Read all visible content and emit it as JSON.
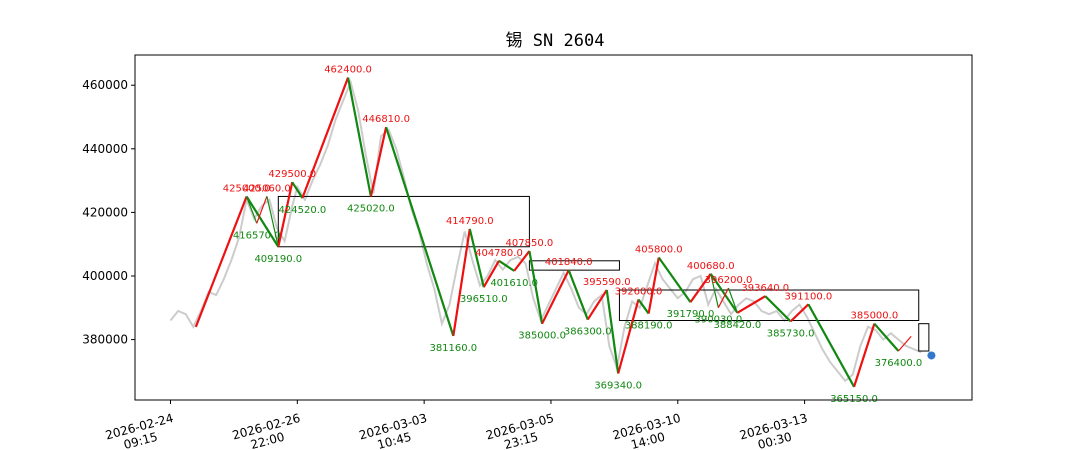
{
  "chart_data": {
    "type": "line",
    "title": "锡 SN 2604",
    "xlabel": "",
    "ylabel": "",
    "ylim": [
      361000,
      469500
    ],
    "y_ticks": [
      380000,
      400000,
      420000,
      440000,
      460000
    ],
    "x_tick_labels": [
      {
        "pos": 0,
        "date": "2026-02-24",
        "time": "09:15"
      },
      {
        "pos": 100,
        "date": "2026-02-26",
        "time": "22:00"
      },
      {
        "pos": 200,
        "date": "2026-03-03",
        "time": "10:45"
      },
      {
        "pos": 300,
        "date": "2026-03-05",
        "time": "23:15"
      },
      {
        "pos": 400,
        "date": "2026-03-10",
        "time": "14:00"
      },
      {
        "pos": 500,
        "date": "2026-03-13",
        "time": "00:30"
      }
    ],
    "xlim": [
      -28,
      632
    ],
    "grid": false,
    "legend": "none",
    "colors": {
      "price": "#cccccc",
      "up_stroke": "#ee1111",
      "down_stroke": "#118811",
      "high_label": "#ee1111",
      "low_label": "#118811",
      "box": "#000000",
      "last_point": "#3377cc"
    },
    "series": [
      {
        "kind": "price",
        "points": [
          [
            0,
            386000
          ],
          [
            6,
            389000
          ],
          [
            12,
            388000
          ],
          [
            18,
            384000
          ],
          [
            24,
            389000
          ],
          [
            30,
            395000
          ],
          [
            36,
            394000
          ],
          [
            42,
            399000
          ],
          [
            48,
            405000
          ],
          [
            54,
            412000
          ],
          [
            60,
            424000
          ],
          [
            66,
            418000
          ],
          [
            72,
            422000
          ],
          [
            78,
            424000
          ],
          [
            84,
            415000
          ],
          [
            90,
            411000
          ],
          [
            96,
            422000
          ],
          [
            100,
            428000
          ],
          [
            106,
            424000
          ],
          [
            112,
            430000
          ],
          [
            118,
            435000
          ],
          [
            124,
            441000
          ],
          [
            130,
            449000
          ],
          [
            136,
            455000
          ],
          [
            142,
            461000
          ],
          [
            148,
            452000
          ],
          [
            154,
            438000
          ],
          [
            160,
            426000
          ],
          [
            166,
            444000
          ],
          [
            172,
            446000
          ],
          [
            178,
            440000
          ],
          [
            184,
            431000
          ],
          [
            190,
            421000
          ],
          [
            196,
            414000
          ],
          [
            202,
            404000
          ],
          [
            208,
            396000
          ],
          [
            214,
            385000
          ],
          [
            220,
            391000
          ],
          [
            226,
            403000
          ],
          [
            232,
            414000
          ],
          [
            238,
            405000
          ],
          [
            244,
            397000
          ],
          [
            250,
            400000
          ],
          [
            256,
            405000
          ],
          [
            262,
            402000
          ],
          [
            268,
            405000
          ],
          [
            274,
            406000
          ],
          [
            280,
            404000
          ],
          [
            286,
            393000
          ],
          [
            292,
            386000
          ],
          [
            298,
            391000
          ],
          [
            304,
            396000
          ],
          [
            310,
            401000
          ],
          [
            316,
            396000
          ],
          [
            322,
            390000
          ],
          [
            328,
            388000
          ],
          [
            334,
            392000
          ],
          [
            340,
            394000
          ],
          [
            346,
            378000
          ],
          [
            352,
            371000
          ],
          [
            358,
            384000
          ],
          [
            364,
            392000
          ],
          [
            370,
            390000
          ],
          [
            376,
            397000
          ],
          [
            382,
            404000
          ],
          [
            388,
            399000
          ],
          [
            394,
            396000
          ],
          [
            400,
            393000
          ],
          [
            406,
            395000
          ],
          [
            412,
            399000
          ],
          [
            418,
            400000
          ],
          [
            424,
            391000
          ],
          [
            430,
            396000
          ],
          [
            436,
            392000
          ],
          [
            442,
            388000
          ],
          [
            448,
            391000
          ],
          [
            454,
            393000
          ],
          [
            460,
            392000
          ],
          [
            466,
            389000
          ],
          [
            472,
            388000
          ],
          [
            478,
            389000
          ],
          [
            484,
            386000
          ],
          [
            490,
            389000
          ],
          [
            496,
            391000
          ],
          [
            502,
            387000
          ],
          [
            508,
            382000
          ],
          [
            514,
            377000
          ],
          [
            520,
            373000
          ],
          [
            526,
            370000
          ],
          [
            532,
            367000
          ],
          [
            538,
            369000
          ],
          [
            544,
            378000
          ],
          [
            550,
            384000
          ],
          [
            556,
            383000
          ],
          [
            562,
            380000
          ],
          [
            568,
            382000
          ],
          [
            574,
            380000
          ],
          [
            580,
            378000
          ],
          [
            586,
            377000
          ],
          [
            592,
            376000
          ]
        ]
      },
      {
        "kind": "strokes",
        "points": [
          [
            20,
            384000
          ],
          [
            60,
            425000
          ],
          [
            68,
            416570
          ],
          [
            76,
            425060
          ],
          [
            85,
            409190
          ],
          [
            96,
            429500
          ],
          [
            104,
            424520
          ],
          [
            140,
            462400
          ],
          [
            158,
            425020
          ],
          [
            170,
            446810
          ],
          [
            223,
            381160
          ],
          [
            236,
            414790
          ],
          [
            247,
            396510
          ],
          [
            259,
            404780
          ],
          [
            271,
            401610
          ],
          [
            283,
            407850
          ],
          [
            293,
            385000
          ],
          [
            314,
            401840
          ],
          [
            329,
            386300
          ],
          [
            344,
            395590
          ],
          [
            353,
            369340
          ],
          [
            369,
            392600
          ],
          [
            377,
            388190
          ],
          [
            385,
            405800
          ],
          [
            410,
            391790
          ],
          [
            426,
            400680
          ],
          [
            432,
            390030
          ],
          [
            440,
            396200
          ],
          [
            447,
            388420
          ],
          [
            469,
            393640
          ],
          [
            489,
            385730
          ],
          [
            503,
            391100
          ],
          [
            539,
            365150
          ],
          [
            555,
            385000
          ],
          [
            574,
            376400
          ],
          [
            584,
            381000
          ]
        ]
      },
      {
        "kind": "segments",
        "points": [
          [
            20,
            384000
          ],
          [
            60,
            425000
          ],
          [
            85,
            409190
          ],
          [
            96,
            429500
          ],
          [
            104,
            424520
          ],
          [
            140,
            462400
          ],
          [
            158,
            425020
          ],
          [
            170,
            446810
          ],
          [
            223,
            381160
          ],
          [
            236,
            414790
          ],
          [
            247,
            396510
          ],
          [
            259,
            404780
          ],
          [
            271,
            401610
          ],
          [
            283,
            407850
          ],
          [
            293,
            385000
          ],
          [
            314,
            401840
          ],
          [
            329,
            386300
          ],
          [
            344,
            395590
          ],
          [
            353,
            369340
          ],
          [
            369,
            392600
          ],
          [
            377,
            388190
          ],
          [
            385,
            405800
          ],
          [
            410,
            391790
          ],
          [
            426,
            400680
          ],
          [
            447,
            388420
          ],
          [
            469,
            393640
          ],
          [
            489,
            385730
          ],
          [
            503,
            391100
          ],
          [
            539,
            365150
          ],
          [
            555,
            385000
          ],
          [
            574,
            376400
          ]
        ]
      }
    ],
    "pivot_labels": [
      {
        "x": 60,
        "y": 425000,
        "text": "425000.0",
        "kind": "high"
      },
      {
        "x": 76,
        "y": 425060,
        "text": "425060.0",
        "kind": "high"
      },
      {
        "x": 96,
        "y": 429500,
        "text": "429500.0",
        "kind": "high"
      },
      {
        "x": 140,
        "y": 462400,
        "text": "462400.0",
        "kind": "high"
      },
      {
        "x": 170,
        "y": 446810,
        "text": "446810.0",
        "kind": "high"
      },
      {
        "x": 236,
        "y": 414790,
        "text": "414790.0",
        "kind": "high"
      },
      {
        "x": 259,
        "y": 404780,
        "text": "404780.0",
        "kind": "high"
      },
      {
        "x": 283,
        "y": 407850,
        "text": "407850.0",
        "kind": "high"
      },
      {
        "x": 314,
        "y": 401840,
        "text": "401840.0",
        "kind": "high"
      },
      {
        "x": 344,
        "y": 395590,
        "text": "395590.0",
        "kind": "high"
      },
      {
        "x": 369,
        "y": 392600,
        "text": "392600.0",
        "kind": "high"
      },
      {
        "x": 385,
        "y": 405800,
        "text": "405800.0",
        "kind": "high"
      },
      {
        "x": 426,
        "y": 400680,
        "text": "400680.0",
        "kind": "high"
      },
      {
        "x": 440,
        "y": 396200,
        "text": "396200.0",
        "kind": "high"
      },
      {
        "x": 469,
        "y": 393640,
        "text": "393640.0",
        "kind": "high"
      },
      {
        "x": 503,
        "y": 391100,
        "text": "391100.0",
        "kind": "high"
      },
      {
        "x": 555,
        "y": 385000,
        "text": "385000.0",
        "kind": "high"
      },
      {
        "x": 68,
        "y": 416570,
        "text": "416570.0",
        "kind": "low"
      },
      {
        "x": 85,
        "y": 409190,
        "text": "409190.0",
        "kind": "low"
      },
      {
        "x": 104,
        "y": 424520,
        "text": "424520.0",
        "kind": "low"
      },
      {
        "x": 158,
        "y": 425020,
        "text": "425020.0",
        "kind": "low"
      },
      {
        "x": 223,
        "y": 381160,
        "text": "381160.0",
        "kind": "low"
      },
      {
        "x": 247,
        "y": 396510,
        "text": "396510.0",
        "kind": "low"
      },
      {
        "x": 271,
        "y": 401610,
        "text": "401610.0",
        "kind": "low"
      },
      {
        "x": 293,
        "y": 385000,
        "text": "385000.0",
        "kind": "low"
      },
      {
        "x": 329,
        "y": 386300,
        "text": "386300.0",
        "kind": "low"
      },
      {
        "x": 353,
        "y": 369340,
        "text": "369340.0",
        "kind": "low"
      },
      {
        "x": 377,
        "y": 388190,
        "text": "388190.0",
        "kind": "low"
      },
      {
        "x": 410,
        "y": 391790,
        "text": "391790.0",
        "kind": "low"
      },
      {
        "x": 432,
        "y": 390030,
        "text": "390030.0",
        "kind": "low"
      },
      {
        "x": 447,
        "y": 388420,
        "text": "388420.0",
        "kind": "low"
      },
      {
        "x": 489,
        "y": 385730,
        "text": "385730.0",
        "kind": "low"
      },
      {
        "x": 539,
        "y": 365150,
        "text": "365150.0",
        "kind": "low"
      },
      {
        "x": 574,
        "y": 376400,
        "text": "376400.0",
        "kind": "low"
      }
    ],
    "zhongshu_boxes": [
      {
        "x0": 85,
        "x1": 283,
        "y0": 409190,
        "y1": 425020
      },
      {
        "x0": 283,
        "x1": 354,
        "y0": 401840,
        "y1": 404780
      },
      {
        "x0": 354,
        "x1": 590,
        "y0": 386000,
        "y1": 395590
      },
      {
        "x0": 590,
        "x1": 598,
        "y0": 376400,
        "y1": 385000
      }
    ],
    "last_point": {
      "x": 600,
      "y": 375000
    }
  }
}
